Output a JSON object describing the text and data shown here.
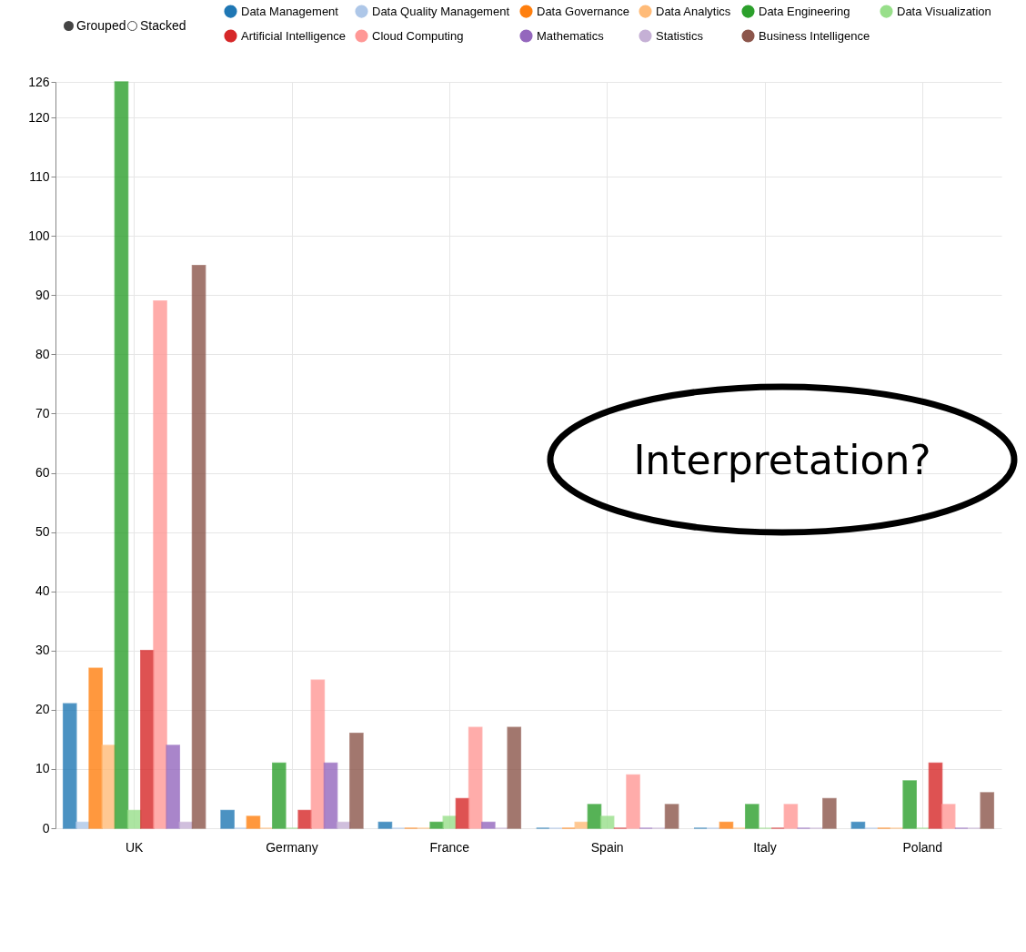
{
  "chart_data": {
    "type": "bar",
    "categories": [
      "UK",
      "Germany",
      "France",
      "Spain",
      "Italy",
      "Poland"
    ],
    "series": [
      {
        "name": "Data Management",
        "color": "#1f77b4",
        "values": [
          21,
          3,
          1,
          0,
          0,
          1
        ]
      },
      {
        "name": "Data Quality Management",
        "color": "#aec7e8",
        "values": [
          1,
          0,
          0,
          0,
          0,
          0
        ]
      },
      {
        "name": "Data Governance",
        "color": "#ff7f0e",
        "values": [
          27,
          2,
          0,
          0,
          1,
          0
        ]
      },
      {
        "name": "Data Analytics",
        "color": "#ffbb78",
        "values": [
          14,
          0,
          0,
          1,
          0,
          0
        ]
      },
      {
        "name": "Data Engineering",
        "color": "#2ca02c",
        "values": [
          126,
          11,
          1,
          4,
          4,
          8
        ]
      },
      {
        "name": "Data Visualization",
        "color": "#98df8a",
        "values": [
          3,
          0,
          2,
          2,
          0,
          0
        ]
      },
      {
        "name": "Artificial Intelligence",
        "color": "#d62728",
        "values": [
          30,
          3,
          5,
          0,
          0,
          11
        ]
      },
      {
        "name": "Cloud Computing",
        "color": "#ff9896",
        "values": [
          89,
          25,
          17,
          9,
          4,
          4
        ]
      },
      {
        "name": "Mathematics",
        "color": "#9467bd",
        "values": [
          14,
          11,
          1,
          0,
          0,
          0
        ]
      },
      {
        "name": "Statistics",
        "color": "#c5b0d5",
        "values": [
          1,
          1,
          0,
          0,
          0,
          0
        ]
      },
      {
        "name": "Business Intelligence",
        "color": "#8c564b",
        "values": [
          95,
          16,
          17,
          4,
          5,
          6
        ]
      }
    ],
    "ylim": [
      0,
      126
    ],
    "yticks": [
      0,
      10,
      20,
      30,
      40,
      50,
      60,
      70,
      80,
      90,
      100,
      110,
      120,
      126
    ],
    "grid": true,
    "legend": "top",
    "annotations": [
      "Grouped",
      "Stacked",
      "Interpretation?"
    ]
  }
}
